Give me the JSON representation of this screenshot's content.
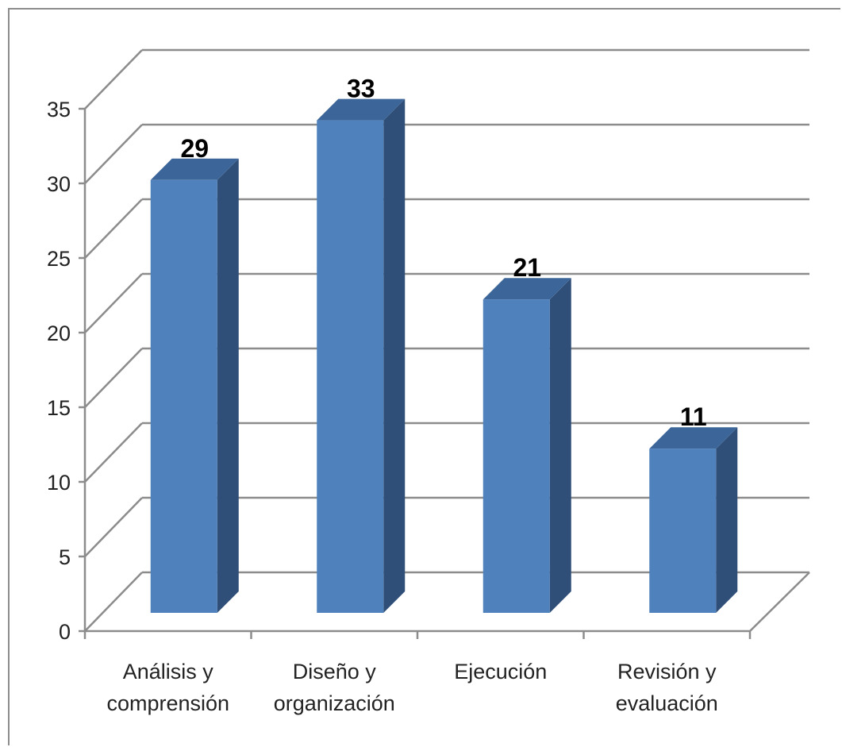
{
  "chart_data": {
    "type": "bar",
    "style": "3d-column",
    "categories": [
      [
        "Análisis y",
        "comprensión"
      ],
      [
        "Diseño y",
        "organización"
      ],
      [
        "Ejecución"
      ],
      [
        "Revisión y",
        "evaluación"
      ]
    ],
    "values": [
      29,
      33,
      21,
      11
    ],
    "ylim": [
      0,
      35
    ],
    "yticks": [
      0,
      5,
      10,
      15,
      20,
      25,
      30,
      35
    ],
    "grid": true,
    "data_labels": true,
    "legend": "none",
    "colors": {
      "bar_front": "#4f81bd",
      "bar_side": "#2f4f78",
      "bar_top": "#3c6699",
      "grid": "#8c8c8c"
    }
  }
}
